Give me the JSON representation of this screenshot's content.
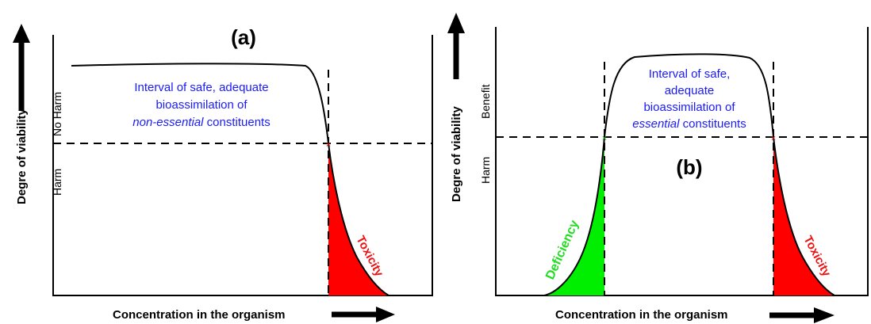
{
  "panel_a": {
    "title": "(a)",
    "y_axis_label": "Degre of viability",
    "y_tick_upper": "No Harm",
    "y_tick_lower": "Harm",
    "x_axis_label": "Concentration in the organism",
    "note_line1": "Interval of safe, adequate",
    "note_line2": "bioassimilation of",
    "note_line3_italic": "non-essential",
    "note_line3_rest": " constituents",
    "region_label": "Toxicity"
  },
  "panel_b": {
    "title": "(b)",
    "y_axis_label": "Degre of viability",
    "y_tick_upper": "Benefit",
    "y_tick_lower": "Harm",
    "x_axis_label": "Concentration in the organism",
    "note_line1": "Interval of safe,",
    "note_line2": "adequate",
    "note_line3": "bioassimilation of",
    "note_line4_italic": "essential",
    "note_line4_rest": " constituents",
    "region_left_label": "Deficiency",
    "region_right_label": "Toxicity"
  },
  "colors": {
    "toxicity": "#ff0000",
    "deficiency": "#00ee00",
    "note_text": "#1a1aff",
    "curve": "#000000"
  }
}
